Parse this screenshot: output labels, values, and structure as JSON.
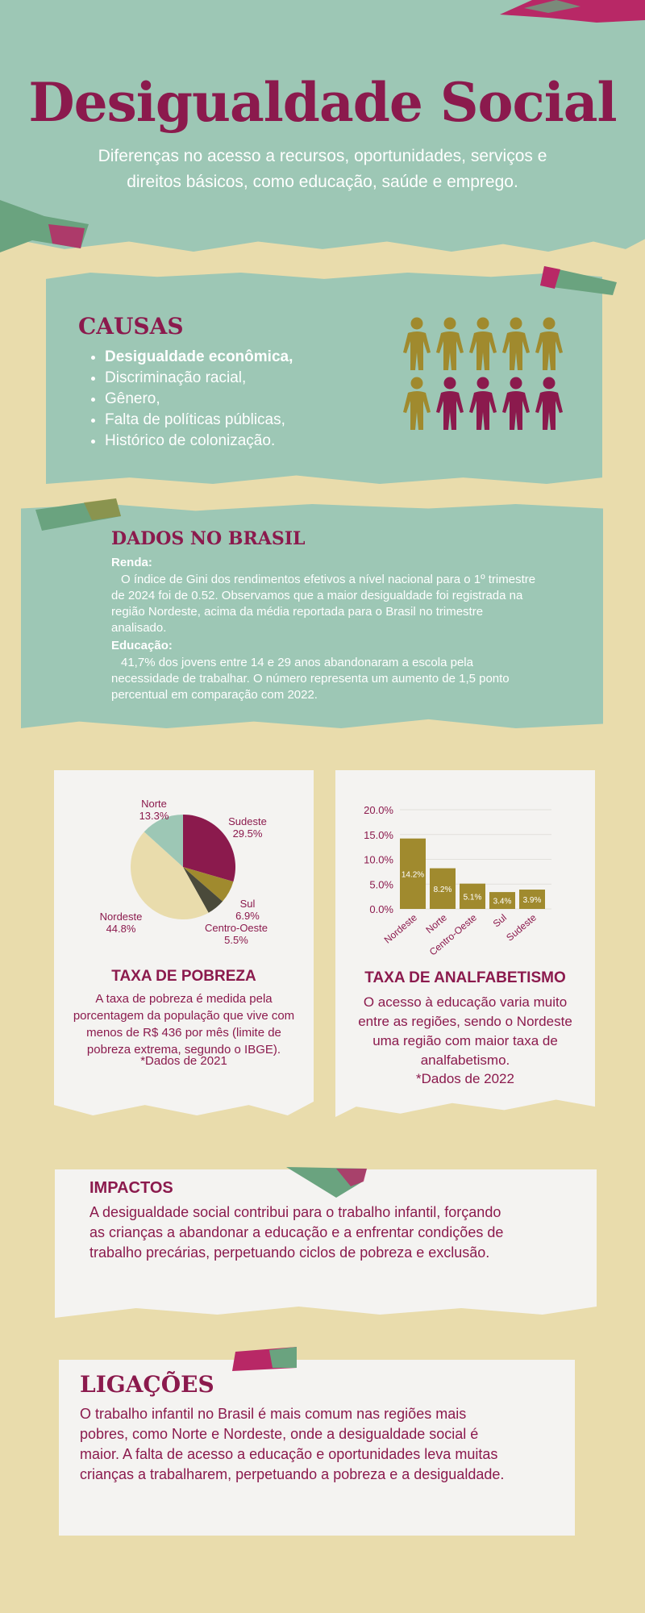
{
  "header": {
    "title": "Desigualdade Social",
    "subtitle": "Diferenças no acesso a recursos, oportunidades, serviços e direitos básicos, como educação, saúde e emprego."
  },
  "causes": {
    "title": "CAUSAS",
    "items": [
      "Desigualdade econômica,",
      "Discriminação racial,",
      "Gênero,",
      "Falta de políticas públicas,",
      "Histórico de colonização."
    ]
  },
  "data_brasil": {
    "title": "DADOS NO BRASIL",
    "renda_label": "Renda:",
    "renda_text": "O índice de Gini dos rendimentos efetivos a nível nacional para o 1º trimestre de 2024 foi de 0.52. Observamos que a maior desigualdade foi registrada na região Nordeste, acima da média reportada para o Brasil no trimestre analisado.",
    "educacao_label": "Educação:",
    "educacao_text": "41,7% dos jovens entre 14 e 29 anos abandonaram a escola pela necessidade de trabalhar. O número representa um aumento de 1,5 ponto percentual em comparação com 2022."
  },
  "pobreza": {
    "title": "TAXA DE POBREZA",
    "text": "A taxa de pobreza é medida pela porcentagem da população que vive com menos de R$ 436 por mês (limite de pobreza extrema, segundo o IBGE).",
    "note": "*Dados de 2021"
  },
  "analfabetismo": {
    "title": "TAXA DE ANALFABETISMO",
    "text": "O acesso à educação varia muito entre as regiões, sendo o Nordeste uma região com maior taxa de analfabetismo.",
    "note": "*Dados de 2022"
  },
  "impacts": {
    "title": "IMPACTOS",
    "text": "A desigualdade social contribui para o trabalho infantil, forçando as crianças a abandonar a educação e a enfrentar condições de trabalho precárias, perpetuando ciclos de pobreza e exclusão."
  },
  "links": {
    "title": "LIGAÇÕES",
    "text": "O trabalho infantil no Brasil é mais comum nas regiões mais pobres, como Norte e Nordeste, onde a desigualdade social é maior. A falta de acesso a educação e oportunidades leva muitas crianças a trabalharem, perpetuando a pobreza e a desigualdade."
  },
  "colors": {
    "teal": "#9dc7b5",
    "magenta": "#8b1a4d",
    "gold": "#a08a2e",
    "sand": "#e9dcac",
    "dark": "#4a4a3a"
  },
  "people_icons": {
    "total": 10,
    "highlighted": 4
  },
  "chart_data": [
    {
      "type": "pie",
      "categories": [
        "Sudeste",
        "Sul",
        "Centro-Oeste",
        "Nordeste",
        "Norte"
      ],
      "values": [
        29.5,
        6.9,
        5.5,
        44.8,
        13.3
      ],
      "value_labels": [
        "29.5%",
        "6.9%",
        "5.5%",
        "44.8%",
        "13.3%"
      ],
      "colors": [
        "#8b1a4d",
        "#a08a2e",
        "#4a4a3a",
        "#e9dcac",
        "#9dc7b5"
      ]
    },
    {
      "type": "bar",
      "categories": [
        "Nordeste",
        "Norte",
        "Centro-Oeste",
        "Sul",
        "Sudeste"
      ],
      "values": [
        14.2,
        8.2,
        5.1,
        3.4,
        3.9
      ],
      "value_labels": [
        "14.2%",
        "8.2%",
        "5.1%",
        "3.4%",
        "3.9%"
      ],
      "yticks": [
        "0.0%",
        "5.0%",
        "10.0%",
        "15.0%",
        "20.0%"
      ],
      "ylim": [
        0,
        20
      ],
      "color": "#a08a2e"
    }
  ]
}
